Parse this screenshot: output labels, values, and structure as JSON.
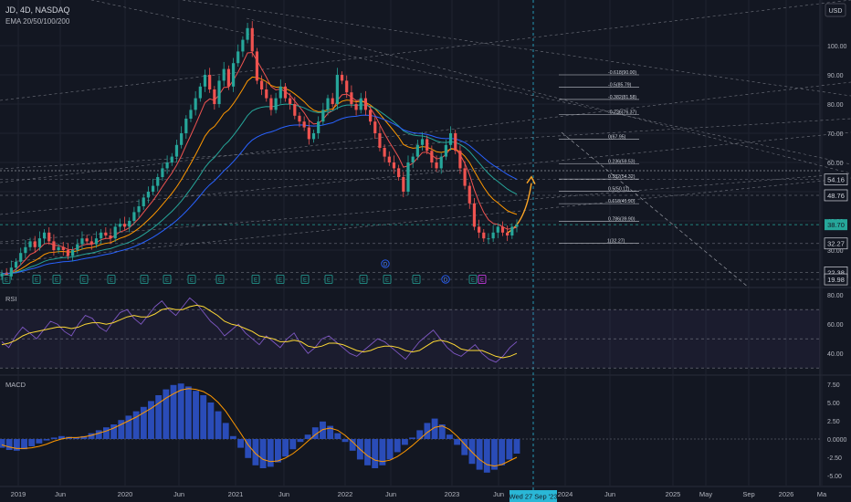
{
  "header": {
    "symbol": "JD, 4D, NASDAQ",
    "indicator": "EMA 20/50/100/200",
    "currency": "USD"
  },
  "crosshair_date": "Wed 27 Sep '23",
  "colors": {
    "bg": "#131722",
    "grid": "#1f2330",
    "text": "#b2b5be",
    "up": "#26a69a",
    "down": "#ef5350",
    "ema20": "#ef5350",
    "ema50": "#ff9800",
    "ema100": "#26a69a",
    "ema200": "#2962ff",
    "rsi": "#7e57c2",
    "rsi_ma": "#fdd835",
    "macd_hist": "#2a4cb8",
    "macd_signal": "#ff9800",
    "projection": "#ffa726",
    "crosshair": "#2ab7d6"
  },
  "chart_data": [
    {
      "type": "candlestick",
      "title": "JD, 4D, NASDAQ",
      "x_ticks": [
        "2019",
        "Jun",
        "2020",
        "Jun",
        "2021",
        "Jun",
        "2022",
        "Jun",
        "2023",
        "Jun",
        "2024",
        "Jun",
        "2025",
        "May",
        "Sep",
        "2026",
        "Ma"
      ],
      "y_ticks": [
        "100.00",
        "90.00",
        "80.00",
        "70.00",
        "60.00",
        "50.00",
        "40.00",
        "30.00"
      ],
      "ylim": [
        20,
        108
      ],
      "price_labels": [
        {
          "text": "54.16",
          "value": 54.16,
          "style": "outline"
        },
        {
          "text": "48.76",
          "value": 48.76,
          "style": "outline"
        },
        {
          "text": "38.70",
          "value": 38.7,
          "style": "current"
        },
        {
          "text": "32.27",
          "value": 32.27,
          "style": "outline"
        },
        {
          "text": "22.38",
          "value": 22.38,
          "style": "outline"
        },
        {
          "text": "19.98",
          "value": 19.98,
          "style": "outline"
        }
      ],
      "series": [
        {
          "name": "JD",
          "close": [
            22,
            21,
            24,
            26,
            29,
            31,
            33,
            31,
            34,
            36,
            33,
            30,
            31,
            30,
            28,
            30,
            32,
            34,
            33,
            32,
            34,
            36,
            35,
            34,
            38,
            39,
            38,
            40,
            43,
            45,
            48,
            50,
            52,
            55,
            58,
            60,
            62,
            66,
            70,
            75,
            78,
            82,
            86,
            90,
            85,
            80,
            88,
            92,
            86,
            94,
            98,
            102,
            106,
            98,
            88,
            85,
            82,
            78,
            82,
            86,
            82,
            80,
            76,
            74,
            72,
            68,
            70,
            74,
            78,
            82,
            80,
            90,
            88,
            84,
            80,
            78,
            82,
            78,
            74,
            70,
            65,
            62,
            60,
            58,
            55,
            50,
            60,
            62,
            66,
            68,
            64,
            60,
            58,
            62,
            66,
            70,
            64,
            58,
            52,
            46,
            38,
            36,
            34,
            34,
            36,
            38,
            36,
            35,
            38,
            38.7
          ]
        }
      ],
      "ema_lines": [
        "EMA 20",
        "EMA 50",
        "EMA 100",
        "EMA 200"
      ],
      "fib_levels": [
        {
          "label": "-0.618(90.00)",
          "value": 90.0
        },
        {
          "label": "-0.5(85.79)",
          "value": 85.79
        },
        {
          "label": "-0.382(81.58)",
          "value": 81.58
        },
        {
          "label": "-0.236(76.37)",
          "value": 76.37
        },
        {
          "label": "0(67.95)",
          "value": 67.95
        },
        {
          "label": "0.236(59.53)",
          "value": 59.53
        },
        {
          "label": "0.382(54.32)",
          "value": 54.32
        },
        {
          "label": "0.5(50.11)",
          "value": 50.11
        },
        {
          "label": "0.618(45.90)",
          "value": 45.9
        },
        {
          "label": "0.786(39.90)",
          "value": 39.9
        },
        {
          "label": "1(32.27)",
          "value": 32.27
        }
      ],
      "projection": {
        "from": 36,
        "to": 54.16
      },
      "event_markers": [
        "E",
        "E",
        "E",
        "E",
        "E",
        "E",
        "E",
        "E",
        "E",
        "E",
        "E",
        "E",
        "E",
        "E",
        "E",
        "D",
        "E",
        "D",
        "E",
        "E"
      ]
    },
    {
      "type": "line",
      "title": "RSI",
      "y_ticks": [
        "80.00",
        "60.00",
        "40.00"
      ],
      "ylim": [
        25,
        82
      ],
      "band": [
        30,
        70
      ],
      "series": [
        {
          "name": "RSI",
          "values": [
            48,
            44,
            52,
            58,
            54,
            50,
            56,
            62,
            60,
            55,
            52,
            60,
            66,
            64,
            58,
            55,
            62,
            68,
            70,
            64,
            60,
            66,
            72,
            76,
            70,
            66,
            72,
            78,
            74,
            68,
            62,
            58,
            52,
            56,
            60,
            54,
            50,
            46,
            52,
            48,
            44,
            50,
            54,
            46,
            40,
            44,
            50,
            52,
            48,
            44,
            40,
            38,
            42,
            46,
            50,
            48,
            44,
            40,
            36,
            42,
            48,
            52,
            56,
            50,
            44,
            40,
            38,
            42,
            46,
            40,
            36,
            34,
            38,
            44,
            48
          ]
        },
        {
          "name": "RSI MA",
          "values": [
            46,
            47,
            49,
            52,
            54,
            55,
            56,
            57,
            58,
            58,
            57,
            58,
            60,
            61,
            61,
            60,
            61,
            63,
            65,
            66,
            65,
            65,
            67,
            70,
            71,
            70,
            70,
            72,
            73,
            72,
            69,
            66,
            62,
            60,
            59,
            57,
            55,
            52,
            51,
            50,
            48,
            48,
            49,
            48,
            45,
            44,
            45,
            47,
            47,
            46,
            44,
            42,
            41,
            42,
            44,
            45,
            45,
            44,
            42,
            41,
            42,
            45,
            48,
            49,
            48,
            46,
            43,
            42,
            42,
            42,
            40,
            38,
            37,
            38,
            40
          ]
        }
      ]
    },
    {
      "type": "bar",
      "title": "MACD",
      "y_ticks": [
        "7.50",
        "5.00",
        "2.50",
        "0.0000",
        "-2.50",
        "-5.00"
      ],
      "ylim": [
        -6,
        8.5
      ],
      "series": [
        {
          "name": "Histogram",
          "values": [
            -1.2,
            -1.5,
            -1.6,
            -1.4,
            -1.0,
            -0.6,
            -0.2,
            0.2,
            0.4,
            0.3,
            0.2,
            0.4,
            0.8,
            1.2,
            1.6,
            2.0,
            2.6,
            3.2,
            3.8,
            4.4,
            5.2,
            6.0,
            6.8,
            7.4,
            7.6,
            7.2,
            6.6,
            6.0,
            5.0,
            3.8,
            2.2,
            0.4,
            -1.2,
            -2.6,
            -3.6,
            -4.0,
            -3.8,
            -3.2,
            -2.4,
            -1.4,
            -0.4,
            0.6,
            1.6,
            2.4,
            1.8,
            0.8,
            -0.4,
            -1.6,
            -2.8,
            -3.6,
            -4.0,
            -3.6,
            -2.8,
            -1.8,
            -0.8,
            0.2,
            1.2,
            2.2,
            2.8,
            2.0,
            0.6,
            -0.8,
            -2.2,
            -3.4,
            -4.2,
            -4.6,
            -4.2,
            -3.6,
            -2.8,
            -2.0
          ]
        },
        {
          "name": "Signal",
          "values": [
            -0.8,
            -1.1,
            -1.3,
            -1.3,
            -1.2,
            -1.0,
            -0.7,
            -0.3,
            0.0,
            0.2,
            0.2,
            0.3,
            0.5,
            0.8,
            1.1,
            1.5,
            2.0,
            2.5,
            3.0,
            3.6,
            4.2,
            4.9,
            5.6,
            6.2,
            6.7,
            6.9,
            6.8,
            6.5,
            5.9,
            5.0,
            3.8,
            2.3,
            0.8,
            -0.8,
            -2.0,
            -2.8,
            -3.1,
            -3.0,
            -2.6,
            -2.0,
            -1.2,
            -0.3,
            0.6,
            1.3,
            1.5,
            1.2,
            0.5,
            -0.4,
            -1.4,
            -2.3,
            -2.9,
            -3.1,
            -2.9,
            -2.4,
            -1.7,
            -0.9,
            0.0,
            0.9,
            1.6,
            1.8,
            1.3,
            0.4,
            -0.7,
            -1.8,
            -2.8,
            -3.5,
            -3.7,
            -3.5,
            -3.0,
            -2.5
          ]
        }
      ]
    }
  ]
}
